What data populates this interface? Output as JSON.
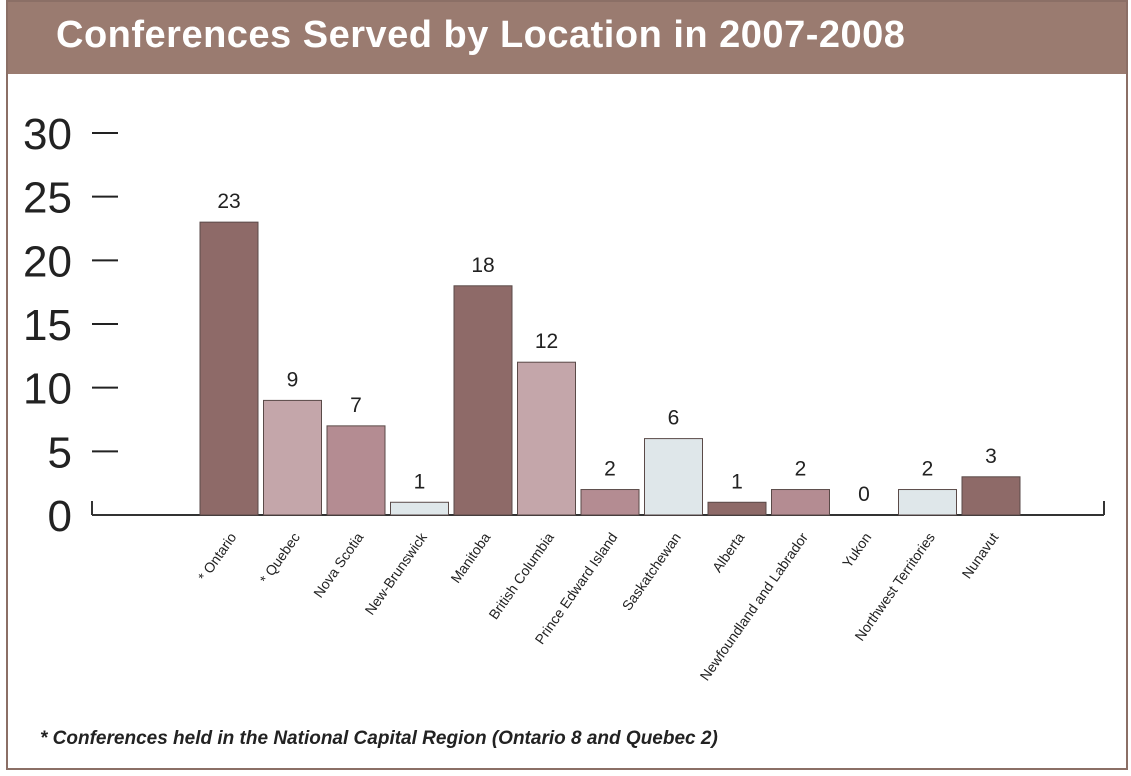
{
  "title": "Conferences Served by Location in 2007-2008",
  "footnote": "* Conferences held in the National Capital Region (Ontario 8 and Quebec 2)",
  "chart_data": {
    "type": "bar",
    "title": "Conferences Served by Location in 2007-2008",
    "xlabel": "",
    "ylabel": "",
    "ylim": [
      0,
      30
    ],
    "yticks": [
      "0",
      "5",
      "10",
      "15",
      "20",
      "25",
      "30"
    ],
    "grid": false,
    "categories": [
      "* Ontario",
      "* Quebec",
      "Nova Scotia",
      "New-Brunswick",
      "Manitoba",
      "British Columbia",
      "Prince Edward Island",
      "Saskatchewan",
      "Alberta",
      "Newfoundland and Labrador",
      "Yukon",
      "Northwest Territories",
      "Nunavut"
    ],
    "values": [
      23,
      9,
      7,
      1,
      18,
      12,
      2,
      6,
      1,
      2,
      0,
      2,
      3
    ],
    "value_labels": [
      "23",
      "9",
      "7",
      "1",
      "18",
      "12",
      "2",
      "6",
      "1",
      "2",
      "0",
      "2",
      "3"
    ],
    "colors": [
      "#8e6a68",
      "#c4a6aa",
      "#b48c92",
      "#dfe7ea",
      "#8e6a68",
      "#c4a6aa",
      "#b48c92",
      "#dfe7ea",
      "#8e6a68",
      "#b48c92",
      "#dfe7ea",
      "#dfe7ea",
      "#8e6a68"
    ]
  }
}
